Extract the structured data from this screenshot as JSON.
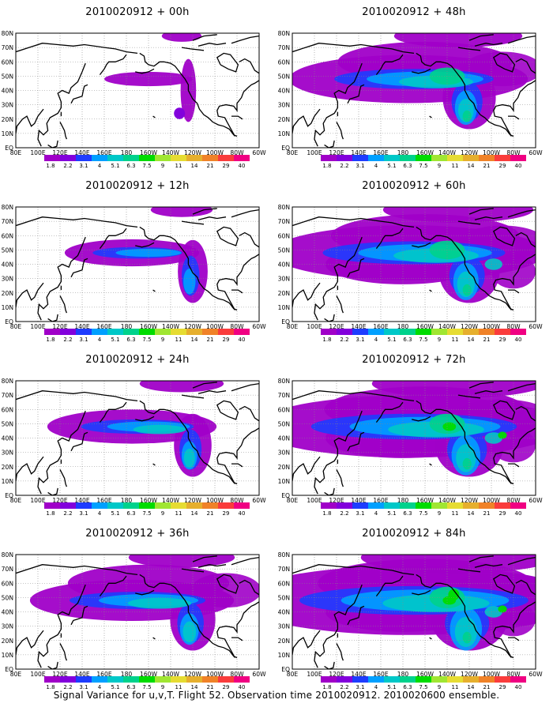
{
  "colors": {
    "scale": [
      "#a000c8",
      "#8200dc",
      "#1e3cff",
      "#00a0ff",
      "#00c8c8",
      "#00d28c",
      "#00dc00",
      "#a0e632",
      "#e6dc32",
      "#e6af2d",
      "#f08228",
      "#fa3c3c",
      "#f00082"
    ]
  },
  "panels": [
    {
      "title": "2010020912 + 00h",
      "intensity": 0
    },
    {
      "title": "2010020912 + 48h",
      "intensity": 4
    },
    {
      "title": "2010020912 + 12h",
      "intensity": 1
    },
    {
      "title": "2010020912 + 60h",
      "intensity": 5
    },
    {
      "title": "2010020912 + 24h",
      "intensity": 2
    },
    {
      "title": "2010020912 + 72h",
      "intensity": 6
    },
    {
      "title": "2010020912 + 36h",
      "intensity": 3
    },
    {
      "title": "2010020912 + 84h",
      "intensity": 7
    }
  ],
  "lat_labels": [
    "80N",
    "70N",
    "60N",
    "50N",
    "40N",
    "30N",
    "20N",
    "10N",
    "EQ"
  ],
  "lon_labels": [
    "80E",
    "100E",
    "120E",
    "140E",
    "160E",
    "180",
    "160W",
    "140W",
    "120W",
    "100W",
    "80W",
    "60W"
  ],
  "colorbar_labels": [
    "1.8",
    "2.2",
    "3.1",
    "4",
    "5.1",
    "6.3",
    "7.5",
    "9",
    "11",
    "14",
    "21",
    "29",
    "40"
  ],
  "caption": "Signal Variance for u,v,T. Flight 52. Observation time 2010020912. 2010020600 ensemble."
}
